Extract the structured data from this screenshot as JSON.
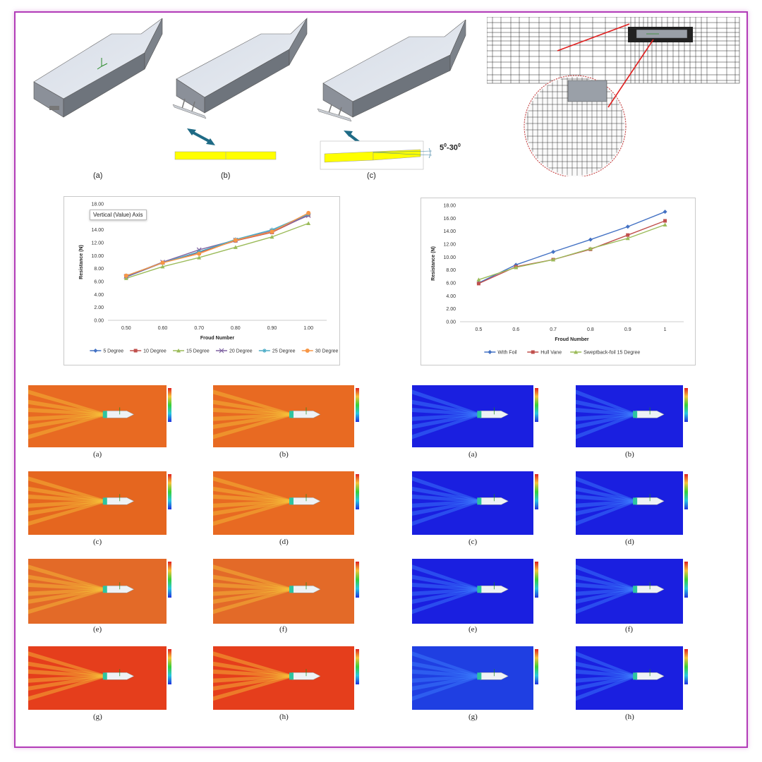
{
  "figure_top": {
    "labels": [
      "(a)",
      "(b)",
      "(c)"
    ],
    "angle_range": "5°-30°",
    "angle_base": "5",
    "angle_mid": "-30",
    "angle_sup": "0"
  },
  "chart_left": {
    "tooltip": "Vertical (Value) Axis",
    "ylabel": "Resistance (N)",
    "xlabel": "Froud Number",
    "y_ticks": [
      "0.00",
      "2.00",
      "4.00",
      "6.00",
      "8.00",
      "10.00",
      "12.00",
      "14.00",
      "16.00",
      "18.00"
    ],
    "x_ticks": [
      "0.50",
      "0.60",
      "0.70",
      "0.80",
      "0.90",
      "1.00"
    ]
  },
  "chart_right": {
    "ylabel": "Resistance (N)",
    "xlabel": "Froud Number",
    "y_ticks": [
      "0.00",
      "2.00",
      "4.00",
      "6.00",
      "8.00",
      "10.00",
      "12.00",
      "14.00",
      "16.00",
      "18.00"
    ],
    "x_ticks": [
      "0.5",
      "0.6",
      "0.7",
      "0.8",
      "0.9",
      "1"
    ]
  },
  "chart_data": [
    {
      "type": "line",
      "x": [
        0.5,
        0.6,
        0.7,
        0.8,
        0.9,
        1.0
      ],
      "xlabel": "Froud Number",
      "ylabel": "Resistance (N)",
      "ylim": [
        0,
        18
      ],
      "grid": false,
      "legend": "bottom",
      "series": [
        {
          "name": "5 Degree",
          "color": "#4472c4",
          "marker": "diamond",
          "values": [
            6.7,
            8.9,
            10.6,
            12.3,
            13.8,
            16.3
          ]
        },
        {
          "name": "10 Degree",
          "color": "#c0504d",
          "marker": "square",
          "values": [
            6.8,
            8.9,
            10.5,
            12.3,
            13.6,
            16.3
          ]
        },
        {
          "name": "15 Degree",
          "color": "#9bbb59",
          "marker": "triangle",
          "values": [
            6.5,
            8.3,
            9.7,
            11.3,
            12.9,
            15.0
          ]
        },
        {
          "name": "20 Degree",
          "color": "#8064a2",
          "marker": "x",
          "values": [
            6.8,
            9.0,
            10.9,
            12.4,
            13.8,
            16.2
          ]
        },
        {
          "name": "25 Degree",
          "color": "#4bacc6",
          "marker": "star",
          "values": [
            6.9,
            8.9,
            10.6,
            12.5,
            14.0,
            16.4
          ]
        },
        {
          "name": "30 Degree",
          "color": "#f79646",
          "marker": "circle",
          "values": [
            6.9,
            8.9,
            10.3,
            12.4,
            13.7,
            16.6
          ]
        }
      ]
    },
    {
      "type": "line",
      "x": [
        0.5,
        0.6,
        0.7,
        0.8,
        0.9,
        1
      ],
      "xlabel": "Froud Number",
      "ylabel": "Resistance (N)",
      "ylim": [
        0,
        18
      ],
      "grid": false,
      "legend": "bottom",
      "series": [
        {
          "name": "With Foil",
          "color": "#4472c4",
          "marker": "diamond",
          "values": [
            6.0,
            8.8,
            10.8,
            12.7,
            14.7,
            17.0
          ]
        },
        {
          "name": "Hull Vane",
          "color": "#c0504d",
          "marker": "square",
          "values": [
            5.9,
            8.5,
            9.6,
            11.2,
            13.4,
            15.6
          ]
        },
        {
          "name": "Sweptback-foil  15 Degree",
          "color": "#9bbb59",
          "marker": "triangle",
          "values": [
            6.5,
            8.4,
            9.6,
            11.3,
            12.9,
            15.0
          ]
        }
      ]
    }
  ],
  "sim_left": {
    "labels": [
      "(a)",
      "(b)",
      "(c)",
      "(d)",
      "(e)",
      "(f)",
      "(g)",
      "(h)"
    ]
  },
  "sim_right": {
    "labels": [
      "(a)",
      "(b)",
      "(c)",
      "(d)",
      "(e)",
      "(f)",
      "(g)",
      "(h)"
    ]
  }
}
